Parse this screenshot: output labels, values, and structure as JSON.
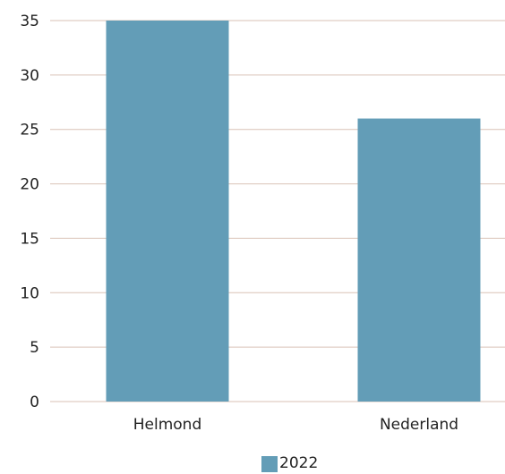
{
  "chart_data": {
    "type": "bar",
    "categories": [
      "Helmond",
      "Nederland"
    ],
    "series": [
      {
        "name": "2022",
        "values": [
          35,
          26
        ],
        "color": "#639db7"
      }
    ],
    "ylim": [
      0,
      35
    ],
    "yticks": [
      "0",
      "5",
      "10",
      "15",
      "20",
      "25",
      "30",
      "35"
    ],
    "grid": true,
    "grid_color": "#d9c2b6",
    "legend_position": "bottom-center",
    "title": "",
    "xlabel": "",
    "ylabel": ""
  }
}
